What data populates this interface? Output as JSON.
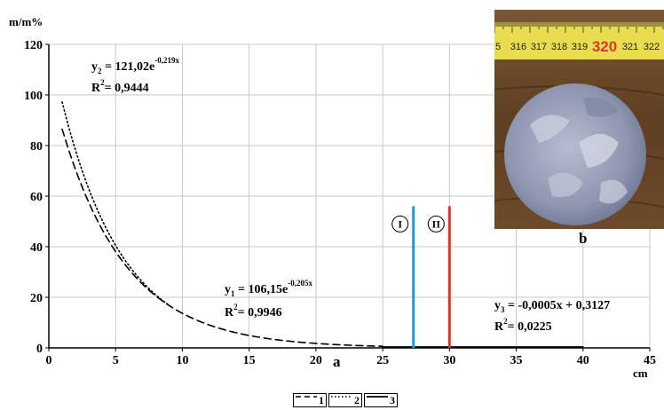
{
  "chart_data": {
    "type": "line",
    "ylabel": "m/m%",
    "xlabel": "cm",
    "xlim": [
      0,
      45
    ],
    "ylim": [
      0,
      120
    ],
    "x_ticks": [
      "0",
      "5",
      "10",
      "15",
      "20",
      "25",
      "30",
      "35",
      "40",
      "45"
    ],
    "y_ticks": [
      "0",
      "20",
      "40",
      "60",
      "80",
      "100",
      "120"
    ],
    "grid": true,
    "series": [
      {
        "name": "1",
        "style": "dashed",
        "color": "#000000",
        "model": {
          "a": 106.15,
          "b": -0.205
        },
        "x_range": [
          1,
          25
        ]
      },
      {
        "name": "2",
        "style": "dotted",
        "color": "#000000",
        "model": {
          "a": 121.02,
          "b": -0.219
        },
        "x_range": [
          1,
          9
        ]
      },
      {
        "name": "3",
        "style": "solid",
        "color": "#000000",
        "x": [
          25,
          40
        ],
        "y": [
          0.3,
          0.29
        ]
      }
    ],
    "markers": [
      {
        "label": "I",
        "x": 27.3,
        "y_top": 56,
        "color": "#1f9ad6"
      },
      {
        "label": "II",
        "x": 30,
        "y_top": 56,
        "color": "#e0362c"
      }
    ],
    "annotations": {
      "eq2": {
        "lhs": "y",
        "sub": "2",
        "main": " = 121,02e",
        "exp": "-0,219x",
        "r_label": "R",
        "r_sup": "2",
        "r_val": "= 0,9444"
      },
      "eq1": {
        "lhs": "y",
        "sub": "1",
        "main": " = 106,15e",
        "exp": "-0,205x",
        "r_label": "R",
        "r_sup": "2",
        "r_val": "= 0,9946"
      },
      "eq3": {
        "lhs": "y",
        "sub": "3",
        "main": " = -0,0005x + 0,3127",
        "r_label": "R",
        "r_sup": "2",
        "r_val": "= 0,0225"
      }
    },
    "panel_labels": {
      "a": "a",
      "b": "b"
    }
  },
  "photo": {
    "ruler_numbers": [
      "5",
      "316",
      "317",
      "318",
      "319",
      "320",
      "321",
      "322"
    ],
    "highlight_number": "320",
    "highlight_color": "#d93a2a"
  },
  "legend": [
    {
      "label": "1",
      "style": "dashed"
    },
    {
      "label": "2",
      "style": "dotted"
    },
    {
      "label": "3",
      "style": "solid"
    }
  ]
}
